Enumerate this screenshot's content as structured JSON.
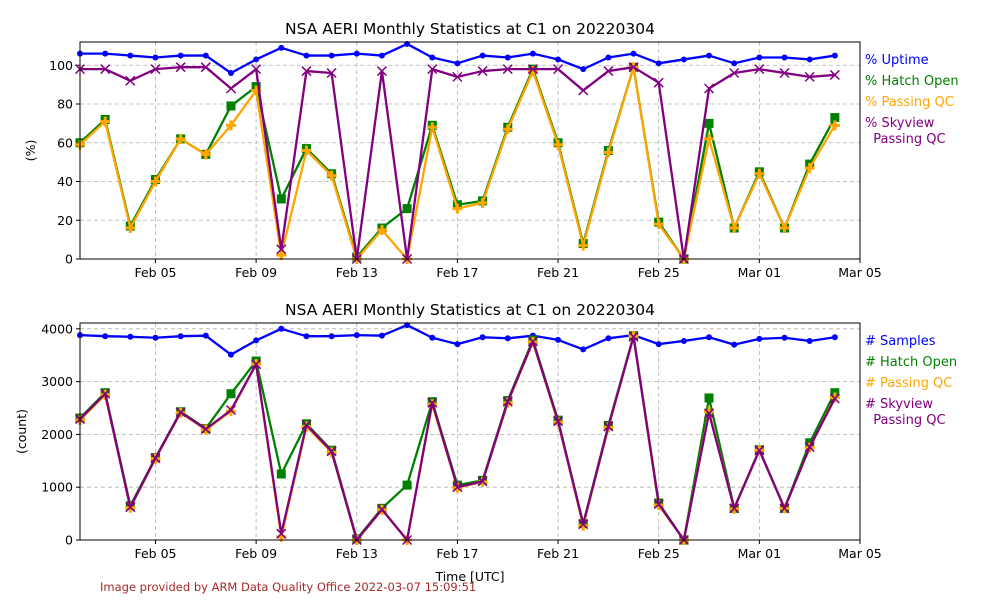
{
  "chart_data": [
    {
      "type": "line",
      "title": "NSA AERI Monthly Statistics at C1 on 20220304",
      "xlabel": "",
      "ylabel": "(%)",
      "ylim": [
        0,
        112
      ],
      "yticks": [
        0,
        20,
        40,
        60,
        80,
        100
      ],
      "x_dates": [
        "Feb 02",
        "Feb 03",
        "Feb 04",
        "Feb 05",
        "Feb 06",
        "Feb 07",
        "Feb 08",
        "Feb 09",
        "Feb 10",
        "Feb 11",
        "Feb 12",
        "Feb 13",
        "Feb 14",
        "Feb 15",
        "Feb 16",
        "Feb 17",
        "Feb 18",
        "Feb 19",
        "Feb 20",
        "Feb 21",
        "Feb 22",
        "Feb 23",
        "Feb 24",
        "Feb 25",
        "Feb 26",
        "Feb 27",
        "Feb 28",
        "Mar 01",
        "Mar 02",
        "Mar 03",
        "Mar 04"
      ],
      "xlim_days": [
        0,
        31
      ],
      "xticks": [
        {
          "day": 3,
          "label": "Feb 05"
        },
        {
          "day": 7,
          "label": "Feb 09"
        },
        {
          "day": 11,
          "label": "Feb 13"
        },
        {
          "day": 15,
          "label": "Feb 17"
        },
        {
          "day": 19,
          "label": "Feb 21"
        },
        {
          "day": 23,
          "label": "Feb 25"
        },
        {
          "day": 27,
          "label": "Mar 01"
        },
        {
          "day": 31,
          "label": "Mar 05"
        }
      ],
      "grid": true,
      "legend_position": "right-outside",
      "series": [
        {
          "name": "% Uptime",
          "color": "#0000ff",
          "marker": "dot",
          "values": [
            106,
            106,
            105,
            104,
            105,
            105,
            96,
            103,
            109,
            105,
            105,
            106,
            105,
            111,
            104,
            101,
            105,
            104,
            106,
            103,
            98,
            104,
            106,
            101,
            103,
            105,
            101,
            104,
            104,
            103,
            105
          ]
        },
        {
          "name": "% Hatch Open",
          "color": "#008000",
          "marker": "square",
          "values": [
            60,
            72,
            17,
            41,
            62,
            54,
            79,
            89,
            31,
            57,
            44,
            1,
            16,
            26,
            69,
            28,
            30,
            68,
            98,
            60,
            8,
            56,
            99,
            19,
            0,
            70,
            16,
            45,
            16,
            49,
            73
          ]
        },
        {
          "name": "% Passing QC",
          "color": "#ffa500",
          "marker": "plus",
          "values": [
            59,
            71,
            16,
            40,
            62,
            54,
            69,
            87,
            2,
            56,
            43,
            0,
            15,
            0,
            68,
            26,
            29,
            67,
            97,
            59,
            7,
            55,
            99,
            18,
            0,
            62,
            16,
            44,
            16,
            47,
            69
          ]
        },
        {
          "name": "% Skyview\n  Passing QC",
          "color": "#800080",
          "marker": "x",
          "values": [
            98,
            98,
            92,
            98,
            99,
            99,
            88,
            98,
            5,
            97,
            96,
            0,
            97,
            0,
            98,
            94,
            97,
            98,
            98,
            98,
            87,
            97,
            99,
            91,
            0,
            88,
            96,
            98,
            96,
            94,
            95
          ]
        }
      ]
    },
    {
      "type": "line",
      "title": "NSA AERI Monthly Statistics at C1 on 20220304",
      "xlabel": "Time [UTC]",
      "ylabel": "(count)",
      "ylim": [
        0,
        4110
      ],
      "yticks": [
        0,
        1000,
        2000,
        3000,
        4000
      ],
      "xlim_days": [
        0,
        31
      ],
      "xticks": [
        {
          "day": 3,
          "label": "Feb 05"
        },
        {
          "day": 7,
          "label": "Feb 09"
        },
        {
          "day": 11,
          "label": "Feb 13"
        },
        {
          "day": 15,
          "label": "Feb 17"
        },
        {
          "day": 19,
          "label": "Feb 21"
        },
        {
          "day": 23,
          "label": "Feb 25"
        },
        {
          "day": 27,
          "label": "Mar 01"
        },
        {
          "day": 31,
          "label": "Mar 05"
        }
      ],
      "grid": true,
      "legend_position": "right-outside",
      "series": [
        {
          "name": "# Samples",
          "color": "#0000ff",
          "marker": "dot",
          "values": [
            3880,
            3860,
            3850,
            3830,
            3860,
            3870,
            3510,
            3780,
            4000,
            3860,
            3860,
            3880,
            3870,
            4070,
            3830,
            3710,
            3840,
            3820,
            3870,
            3790,
            3610,
            3820,
            3880,
            3710,
            3770,
            3840,
            3700,
            3810,
            3830,
            3770,
            3840
          ]
        },
        {
          "name": "# Hatch Open",
          "color": "#008000",
          "marker": "square",
          "values": [
            2310,
            2790,
            650,
            1560,
            2430,
            2110,
            2770,
            3390,
            1250,
            2200,
            1700,
            20,
            600,
            1040,
            2620,
            1040,
            1130,
            2640,
            3790,
            2270,
            310,
            2170,
            3870,
            700,
            0,
            2690,
            600,
            1710,
            600,
            1840,
            2790
          ]
        },
        {
          "name": "# Passing QC",
          "color": "#ffa500",
          "marker": "plus",
          "values": [
            2270,
            2750,
            610,
            1540,
            2410,
            2090,
            2440,
            3330,
            60,
            2150,
            1660,
            0,
            570,
            0,
            2570,
            990,
            1100,
            2600,
            3750,
            2230,
            270,
            2130,
            3860,
            660,
            0,
            2430,
            590,
            1700,
            600,
            1750,
            2700
          ]
        },
        {
          "name": "# Skyview\n  Passing QC",
          "color": "#800080",
          "marker": "x",
          "values": [
            2290,
            2770,
            620,
            1550,
            2420,
            2100,
            2460,
            3330,
            120,
            2180,
            1680,
            0,
            580,
            0,
            2600,
            1000,
            1110,
            2620,
            3760,
            2250,
            300,
            2150,
            3850,
            680,
            0,
            2400,
            600,
            1700,
            600,
            1760,
            2680
          ]
        }
      ]
    }
  ],
  "credit": "Image provided by ARM Data Quality Office 2022-03-07 15:09:51"
}
